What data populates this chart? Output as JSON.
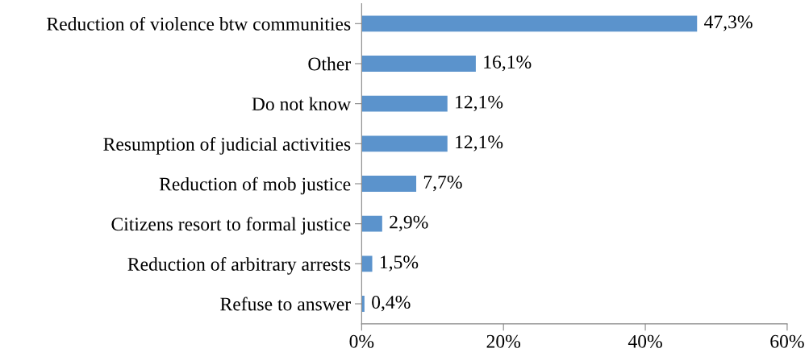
{
  "chart_data": {
    "type": "bar",
    "orientation": "horizontal",
    "categories": [
      "Reduction of violence btw communities",
      "Other",
      "Do not know",
      "Resumption of judicial activities",
      "Reduction of mob justice",
      "Citizens resort to formal justice",
      "Reduction of arbitrary arrests",
      "Refuse to answer"
    ],
    "values": [
      47.3,
      16.1,
      12.1,
      12.1,
      7.7,
      2.9,
      1.5,
      0.4
    ],
    "value_labels": [
      "47,3%",
      "16,1%",
      "12,1%",
      "12,1%",
      "7,7%",
      "2,9%",
      "1,5%",
      "0,4%"
    ],
    "color": "#5b93cc",
    "xlim": [
      0,
      60
    ],
    "xticks": [
      {
        "value": 0,
        "label": "0%"
      },
      {
        "value": 20,
        "label": "20%"
      },
      {
        "value": 40,
        "label": "40%"
      },
      {
        "value": 60,
        "label": "60%"
      }
    ],
    "grid": false,
    "legend": false
  }
}
